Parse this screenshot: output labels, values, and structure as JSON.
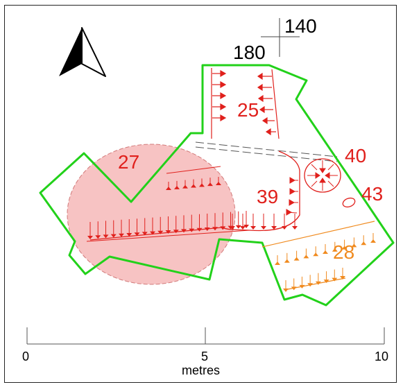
{
  "grid_reference": {
    "easting": "140",
    "northing": "180"
  },
  "features": [
    {
      "id": "25",
      "color": "#e0201c"
    },
    {
      "id": "27",
      "color": "#e0201c"
    },
    {
      "id": "39",
      "color": "#e0201c"
    },
    {
      "id": "40",
      "color": "#e0201c"
    },
    {
      "id": "43",
      "color": "#e0201c"
    },
    {
      "id": "28",
      "color": "#f08a1e"
    }
  ],
  "scale_bar": {
    "ticks": [
      "0",
      "5",
      "10"
    ],
    "unit": "metres"
  },
  "colors": {
    "trench_outline": "#22d11a",
    "cut_feature": "#e0201c",
    "cut_feature_fill": "#f6b8b8",
    "orange_feature": "#f08a1e",
    "north_arrow": "#000000"
  }
}
